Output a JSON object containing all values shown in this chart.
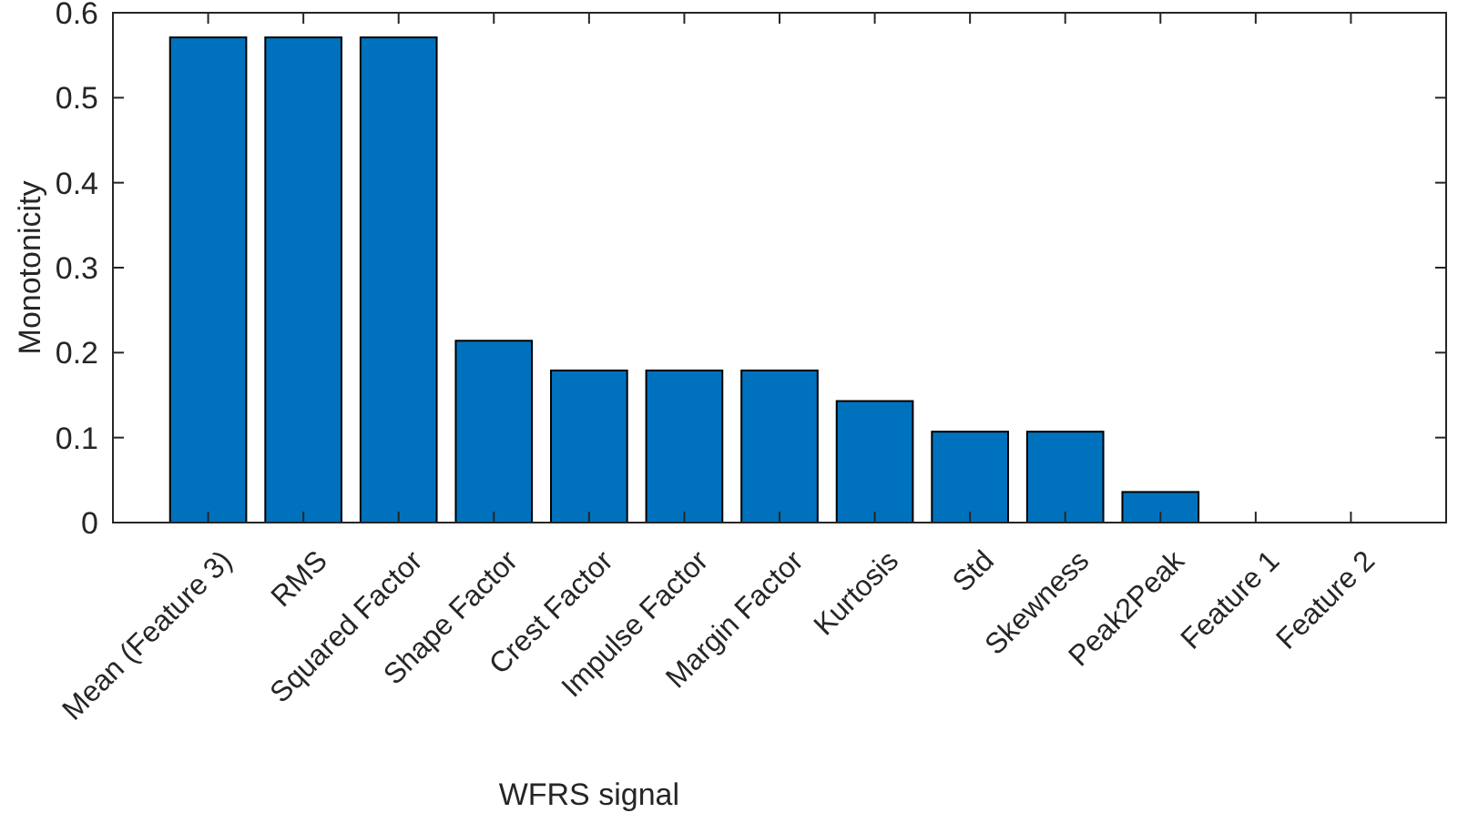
{
  "chart_data": {
    "type": "bar",
    "xlabel": "WFRS signal",
    "ylabel": "Monotonicity",
    "categories": [
      "Mean (Feature 3)",
      "RMS",
      "Squared Factor",
      "Shape Factor",
      "Crest Factor",
      "Impulse Factor",
      "Margin Factor",
      "Kurtosis",
      "Std",
      "Skewness",
      "Peak2Peak",
      "Feature 1",
      "Feature 2"
    ],
    "values": [
      0.571,
      0.571,
      0.571,
      0.214,
      0.179,
      0.179,
      0.179,
      0.143,
      0.107,
      0.107,
      0.036,
      0,
      0
    ],
    "color": "#0072bd",
    "ylim": [
      0,
      0.6
    ],
    "yticks": [
      0,
      0.1,
      0.2,
      0.3,
      0.4,
      0.5,
      0.6
    ],
    "grid": false
  }
}
